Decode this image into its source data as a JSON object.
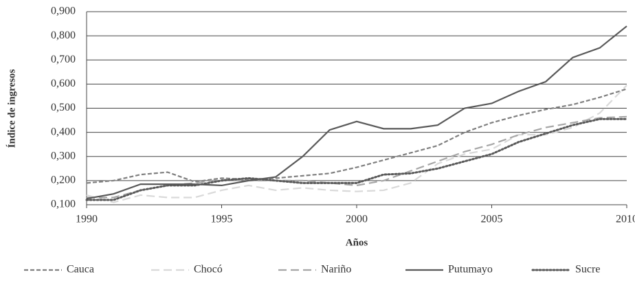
{
  "chart_data": {
    "type": "line",
    "x_label": "Años",
    "y_label": "Índice de ingresos",
    "x": [
      1990,
      1991,
      1992,
      1993,
      1994,
      1995,
      1996,
      1997,
      1998,
      1999,
      2000,
      2001,
      2002,
      2003,
      2004,
      2005,
      2006,
      2007,
      2008,
      2009,
      2010
    ],
    "xlim": [
      1990,
      2010
    ],
    "xticks": [
      1990,
      1995,
      2000,
      2005,
      2010
    ],
    "ylim": [
      0.1,
      0.9
    ],
    "yticks": [
      {
        "value": 0.1,
        "label": "0,100"
      },
      {
        "value": 0.2,
        "label": "0,200"
      },
      {
        "value": 0.3,
        "label": "0,300"
      },
      {
        "value": 0.4,
        "label": "0,400"
      },
      {
        "value": 0.5,
        "label": "0,500"
      },
      {
        "value": 0.6,
        "label": "0,600"
      },
      {
        "value": 0.7,
        "label": "0,700"
      },
      {
        "value": 0.8,
        "label": "0,800"
      },
      {
        "value": 0.9,
        "label": "0,900"
      }
    ],
    "grid": true,
    "legend": "bottom",
    "series": [
      {
        "name": "Cauca",
        "color": "#7f7f7f",
        "style": "dashed",
        "values": [
          0.19,
          0.2,
          0.225,
          0.235,
          0.195,
          0.21,
          0.205,
          0.21,
          0.22,
          0.23,
          0.255,
          0.285,
          0.315,
          0.345,
          0.4,
          0.44,
          0.47,
          0.495,
          0.515,
          0.545,
          0.58
        ]
      },
      {
        "name": "Chocó",
        "color": "#d9d9d9",
        "style": "longdash",
        "values": [
          0.14,
          0.11,
          0.14,
          0.13,
          0.13,
          0.16,
          0.18,
          0.16,
          0.17,
          0.16,
          0.155,
          0.16,
          0.19,
          0.27,
          0.31,
          0.33,
          0.39,
          0.39,
          0.42,
          0.48,
          0.595
        ]
      },
      {
        "name": "Nariño",
        "color": "#a6a6a6",
        "style": "longdash",
        "values": [
          0.13,
          0.13,
          0.16,
          0.18,
          0.19,
          0.205,
          0.2,
          0.2,
          0.2,
          0.19,
          0.18,
          0.2,
          0.24,
          0.28,
          0.32,
          0.35,
          0.39,
          0.42,
          0.44,
          0.46,
          0.465
        ]
      },
      {
        "name": "Putumayo",
        "color": "#595959",
        "style": "solid",
        "values": [
          0.125,
          0.145,
          0.185,
          0.185,
          0.185,
          0.18,
          0.2,
          0.215,
          0.3,
          0.41,
          0.445,
          0.415,
          0.415,
          0.43,
          0.5,
          0.52,
          0.57,
          0.61,
          0.71,
          0.75,
          0.84
        ]
      },
      {
        "name": "Sucre",
        "color": "#595959",
        "style": "dotted",
        "values": [
          0.12,
          0.12,
          0.16,
          0.18,
          0.18,
          0.2,
          0.21,
          0.2,
          0.19,
          0.19,
          0.19,
          0.225,
          0.23,
          0.25,
          0.28,
          0.31,
          0.36,
          0.395,
          0.43,
          0.455,
          0.455
        ]
      }
    ]
  }
}
